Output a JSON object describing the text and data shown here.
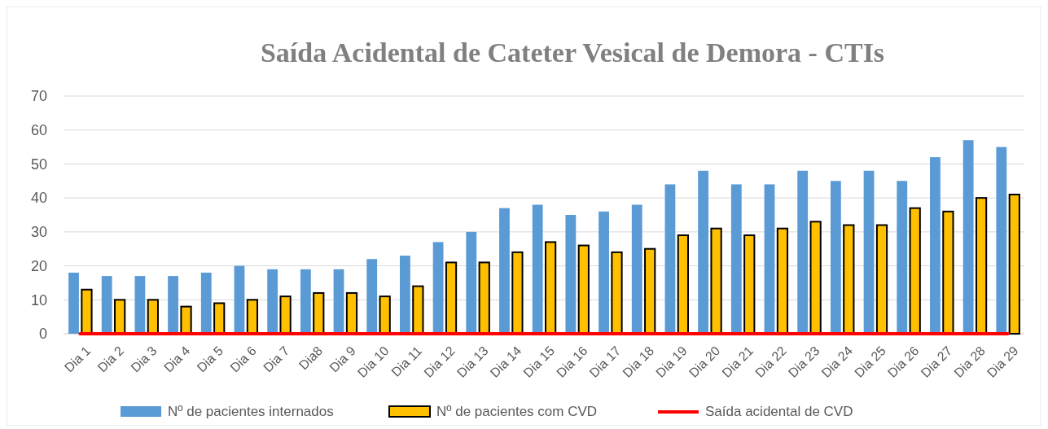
{
  "chart_data": {
    "type": "bar",
    "title": "Saída Acidental de Cateter Vesical de Demora - CTIs",
    "categories": [
      "Dia 1",
      "Dia 2",
      "Dia 3",
      "Dia 4",
      "Dia 5",
      "Dia 6",
      "Dia 7",
      "Dia8",
      "Dia 9",
      "Dia 10",
      "Dia 11",
      "Dia 12",
      "Dia 13",
      "Dia 14",
      "Dia 15",
      "Dia 16",
      "Dia 17",
      "Dia 18",
      "Dia 19",
      "Dia 20",
      "Dia 21",
      "Dia 22",
      "Dia 23",
      "Dia 24",
      "Dia 25",
      "Dia 26",
      "Dia 27",
      "Dia 28",
      "Dia 29"
    ],
    "series": [
      {
        "name": "Nº de pacientes internados",
        "color": "#5b9bd5",
        "values": [
          18,
          17,
          17,
          17,
          18,
          20,
          19,
          19,
          19,
          22,
          23,
          27,
          30,
          37,
          38,
          35,
          36,
          38,
          44,
          48,
          44,
          44,
          48,
          45,
          48,
          45,
          52,
          57,
          55
        ]
      },
      {
        "name": "Nº de pacientes com CVD",
        "color": "#ffc000",
        "values": [
          13,
          10,
          10,
          8,
          9,
          10,
          11,
          12,
          12,
          11,
          14,
          21,
          21,
          24,
          27,
          26,
          24,
          25,
          29,
          31,
          29,
          31,
          33,
          32,
          32,
          37,
          36,
          40,
          41
        ]
      },
      {
        "name": "Saída acidental de CVD",
        "type": "line",
        "color": "#ff0000",
        "values": [
          0,
          0,
          0,
          0,
          0,
          0,
          0,
          0,
          0,
          0,
          0,
          0,
          0,
          0,
          0,
          0,
          0,
          0,
          0,
          0,
          0,
          0,
          0,
          0,
          0,
          0,
          0,
          0,
          0
        ]
      }
    ],
    "ylim": [
      0,
      70
    ],
    "yticks": [
      0,
      10,
      20,
      30,
      40,
      50,
      60,
      70
    ],
    "grid": "y",
    "legend": "bottom"
  }
}
